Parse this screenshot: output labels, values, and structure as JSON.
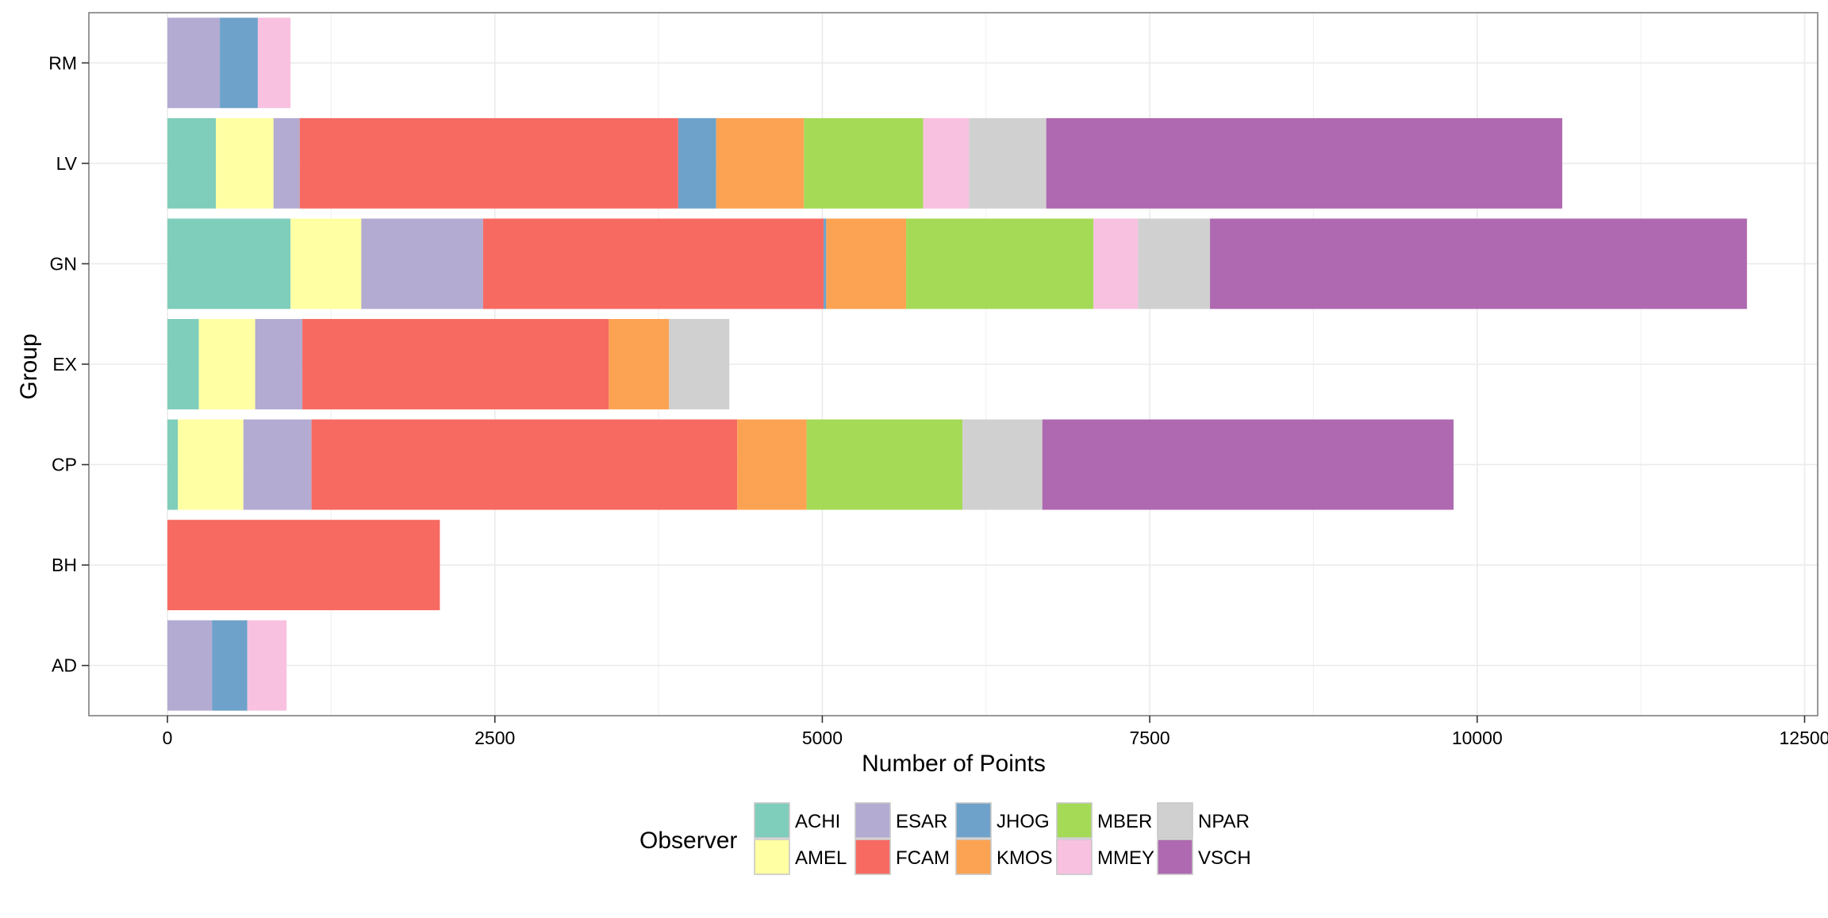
{
  "chart_data": {
    "type": "bar",
    "orientation": "horizontal",
    "stacked": true,
    "xlabel": "Number of Points",
    "ylabel": "Group",
    "xlim": [
      -600,
      12600
    ],
    "xticks": [
      0,
      2500,
      5000,
      7500,
      10000,
      12500
    ],
    "xtick_labels": [
      "0",
      "2500",
      "5000",
      "7500",
      "10000",
      "12500"
    ],
    "grid": true,
    "legend_title": "Observer",
    "legend_position": "bottom",
    "categories": [
      "AD",
      "BH",
      "CP",
      "EX",
      "GN",
      "LV",
      "RM"
    ],
    "series": [
      {
        "name": "ACHI",
        "color": "#7fcdbb",
        "values": [
          0,
          0,
          80,
          240,
          940,
          370,
          0
        ]
      },
      {
        "name": "AMEL",
        "color": "#ffffa3",
        "values": [
          0,
          0,
          500,
          430,
          540,
          440,
          0
        ]
      },
      {
        "name": "ESAR",
        "color": "#b3abd2",
        "values": [
          340,
          0,
          520,
          360,
          930,
          200,
          400
        ]
      },
      {
        "name": "FCAM",
        "color": "#f76a62",
        "values": [
          0,
          2080,
          3250,
          2340,
          2600,
          2890,
          0
        ]
      },
      {
        "name": "JHOG",
        "color": "#6ea2ca",
        "values": [
          270,
          0,
          0,
          0,
          20,
          290,
          290
        ]
      },
      {
        "name": "KMOS",
        "color": "#fca353",
        "values": [
          0,
          0,
          530,
          460,
          610,
          670,
          0
        ]
      },
      {
        "name": "MBER",
        "color": "#a5da57",
        "values": [
          0,
          0,
          1190,
          0,
          1430,
          910,
          0
        ]
      },
      {
        "name": "MMEY",
        "color": "#f9c1e0",
        "values": [
          300,
          0,
          0,
          0,
          340,
          350,
          250
        ]
      },
      {
        "name": "NPAR",
        "color": "#d0d0d0",
        "values": [
          0,
          0,
          610,
          460,
          550,
          590,
          0
        ]
      },
      {
        "name": "VSCH",
        "color": "#ae69b0",
        "values": [
          0,
          0,
          3140,
          0,
          4100,
          3940,
          0
        ]
      }
    ]
  }
}
